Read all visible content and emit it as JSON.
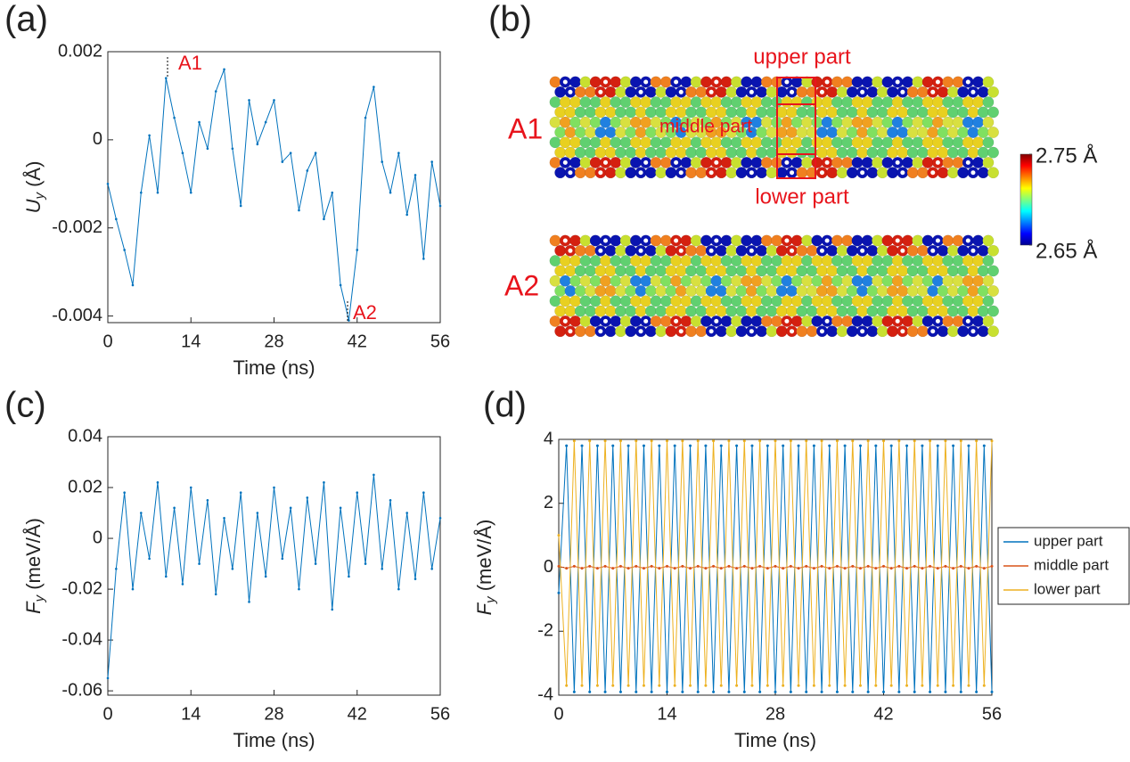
{
  "chart_data": [
    {
      "type": "line",
      "panel": "(a)",
      "xlabel": "Time (ns)",
      "ylabel": {
        "symbol": "U",
        "sub": "y",
        "unit": " (Å)"
      },
      "xlim": [
        0,
        56
      ],
      "xticks": [
        0,
        14,
        28,
        42,
        56
      ],
      "ylim": [
        -0.00415,
        0.002
      ],
      "yticks": [
        0.002,
        0,
        -0.002,
        -0.004
      ],
      "color": "#0072bd",
      "annotations": [
        "A1",
        "A2"
      ],
      "x": [
        0,
        1.4,
        2.8,
        4.2,
        5.6,
        7,
        8.4,
        9.8,
        11.2,
        12.6,
        14,
        15.4,
        16.8,
        18.2,
        19.6,
        21,
        22.4,
        23.8,
        25.2,
        26.6,
        28,
        29.4,
        30.8,
        32.2,
        33.6,
        35,
        36.4,
        37.8,
        39.2,
        40.6,
        42,
        43.4,
        44.8,
        46.2,
        47.6,
        49,
        50.4,
        51.8,
        53.2,
        54.6,
        56
      ],
      "values": [
        -0.001,
        -0.0018,
        -0.0025,
        -0.0033,
        -0.0012,
        0.0001,
        -0.0012,
        0.0014,
        0.0005,
        -0.0003,
        -0.0012,
        0.0004,
        -0.0002,
        0.0011,
        0.0016,
        -0.0002,
        -0.0015,
        0.0009,
        -0.0001,
        0.0004,
        0.0009,
        -0.0005,
        -0.0003,
        -0.0016,
        -0.0007,
        -0.0003,
        -0.0018,
        -0.0012,
        -0.0033,
        -0.0041,
        -0.0025,
        0.0005,
        0.0012,
        -0.0005,
        -0.0012,
        -0.0003,
        -0.0017,
        -0.0008,
        -0.0027,
        -0.0005,
        -0.0015
      ]
    },
    {
      "type": "image",
      "panel": "(b)",
      "strip_labels": [
        "A1",
        "A2"
      ],
      "annotations": [
        "upper part",
        "middle part",
        "lower part"
      ],
      "clim": [
        2.65,
        2.75
      ],
      "colorbar_ticks": [
        {
          "value": 2.75,
          "label": "2.75 Å"
        },
        {
          "value": 2.65,
          "label": "2.65 Å"
        }
      ]
    },
    {
      "type": "line",
      "panel": "(c)",
      "xlabel": "Time (ns)",
      "ylabel": {
        "symbol": "F",
        "sub": "y",
        "unit": " (meV/Å)"
      },
      "xlim": [
        0,
        56
      ],
      "xticks": [
        0,
        14,
        28,
        42,
        56
      ],
      "ylim": [
        -0.0617,
        0.04
      ],
      "yticks": [
        0.04,
        0.02,
        0,
        -0.02,
        -0.04,
        -0.06
      ],
      "color": "#0072bd",
      "x": [
        0,
        1.4,
        2.8,
        4.2,
        5.6,
        7,
        8.4,
        9.8,
        11.2,
        12.6,
        14,
        15.4,
        16.8,
        18.2,
        19.6,
        21,
        22.4,
        23.8,
        25.2,
        26.6,
        28,
        29.4,
        30.8,
        32.2,
        33.6,
        35,
        36.4,
        37.8,
        39.2,
        40.6,
        42,
        43.4,
        44.8,
        46.2,
        47.6,
        49,
        50.4,
        51.8,
        53.2,
        54.6,
        56
      ],
      "values": [
        -0.055,
        -0.012,
        0.018,
        -0.02,
        0.01,
        -0.008,
        0.022,
        -0.015,
        0.012,
        -0.018,
        0.02,
        -0.01,
        0.015,
        -0.022,
        0.008,
        -0.012,
        0.018,
        -0.025,
        0.01,
        -0.015,
        0.02,
        -0.008,
        0.012,
        -0.02,
        0.016,
        -0.01,
        0.022,
        -0.028,
        0.012,
        -0.015,
        0.018,
        -0.01,
        0.025,
        -0.012,
        0.015,
        -0.02,
        0.01,
        -0.016,
        0.018,
        -0.012,
        0.008
      ]
    },
    {
      "type": "line",
      "panel": "(d)",
      "xlabel": "Time (ns)",
      "ylabel": {
        "symbol": "F",
        "sub": "y",
        "unit": " (meV/Å)"
      },
      "xlim": [
        0,
        56
      ],
      "xticks": [
        0,
        14,
        28,
        42,
        56
      ],
      "ylim": [
        -4,
        4
      ],
      "yticks": [
        4,
        2,
        0,
        -2,
        -4
      ],
      "x": [
        0,
        1,
        2,
        3,
        4,
        5,
        6,
        7,
        8,
        9,
        10,
        11,
        12,
        13,
        14,
        15,
        16,
        17,
        18,
        19,
        20,
        21,
        22,
        23,
        24,
        25,
        26,
        27,
        28,
        29,
        30,
        31,
        32,
        33,
        34,
        35,
        36,
        37,
        38,
        39,
        40,
        41,
        42,
        43,
        44,
        45,
        46,
        47,
        48,
        49,
        50,
        51,
        52,
        53,
        54,
        55,
        56
      ],
      "series": [
        {
          "name": "upper part",
          "color": "#0072bd",
          "values": [
            -0.8,
            3.8,
            -3.9,
            3.8,
            -3.9,
            3.8,
            -3.9,
            3.8,
            -3.9,
            3.8,
            -3.9,
            3.8,
            -3.9,
            3.8,
            -3.9,
            3.8,
            -3.9,
            3.8,
            -3.9,
            3.8,
            -3.9,
            3.8,
            -3.9,
            3.8,
            -3.9,
            3.8,
            -3.9,
            3.8,
            -3.9,
            3.8,
            -3.9,
            3.8,
            -3.9,
            3.8,
            -3.9,
            3.8,
            -3.9,
            3.8,
            -3.9,
            3.8,
            -3.9,
            3.8,
            -3.9,
            3.8,
            -3.9,
            3.8,
            -3.9,
            3.8,
            -3.9,
            3.8,
            -3.9,
            3.8,
            -3.9,
            3.8,
            -3.9,
            3.8,
            -3.9
          ]
        },
        {
          "name": "middle part",
          "color": "#d95319",
          "values": [
            0.03,
            -0.03,
            0.03,
            -0.03,
            0.03,
            -0.03,
            0.03,
            -0.03,
            0.03,
            -0.03,
            0.03,
            -0.03,
            0.03,
            -0.03,
            0.03,
            -0.03,
            0.03,
            -0.03,
            0.03,
            -0.03,
            0.03,
            -0.03,
            0.03,
            -0.03,
            0.03,
            -0.03,
            0.03,
            -0.03,
            0.03,
            -0.03,
            0.03,
            -0.03,
            0.03,
            -0.03,
            0.03,
            -0.03,
            0.03,
            -0.03,
            0.03,
            -0.03,
            0.03,
            -0.03,
            0.03,
            -0.03,
            0.03,
            -0.03,
            0.03,
            -0.03,
            0.03,
            -0.03,
            0.03,
            -0.03,
            0.03,
            -0.03,
            0.03,
            -0.03,
            0.03
          ]
        },
        {
          "name": "lower part",
          "color": "#edb120",
          "values": [
            1,
            -3.7,
            3.95,
            -3.7,
            3.95,
            -3.7,
            3.95,
            -3.7,
            3.95,
            -3.7,
            3.95,
            -3.7,
            3.95,
            -3.7,
            3.95,
            -3.7,
            3.95,
            -3.7,
            3.95,
            -3.7,
            3.95,
            -3.7,
            3.95,
            -3.7,
            3.95,
            -3.7,
            3.95,
            -3.7,
            3.95,
            -3.7,
            3.95,
            -3.7,
            3.95,
            -3.7,
            3.95,
            -3.7,
            3.95,
            -3.7,
            3.95,
            -3.7,
            3.95,
            -3.7,
            3.95,
            -3.7,
            3.95,
            -3.7,
            3.95,
            -3.7,
            3.95,
            -3.7,
            3.95,
            -3.7,
            3.95,
            -3.7,
            3.95,
            -3.7,
            3.95
          ]
        }
      ]
    }
  ]
}
